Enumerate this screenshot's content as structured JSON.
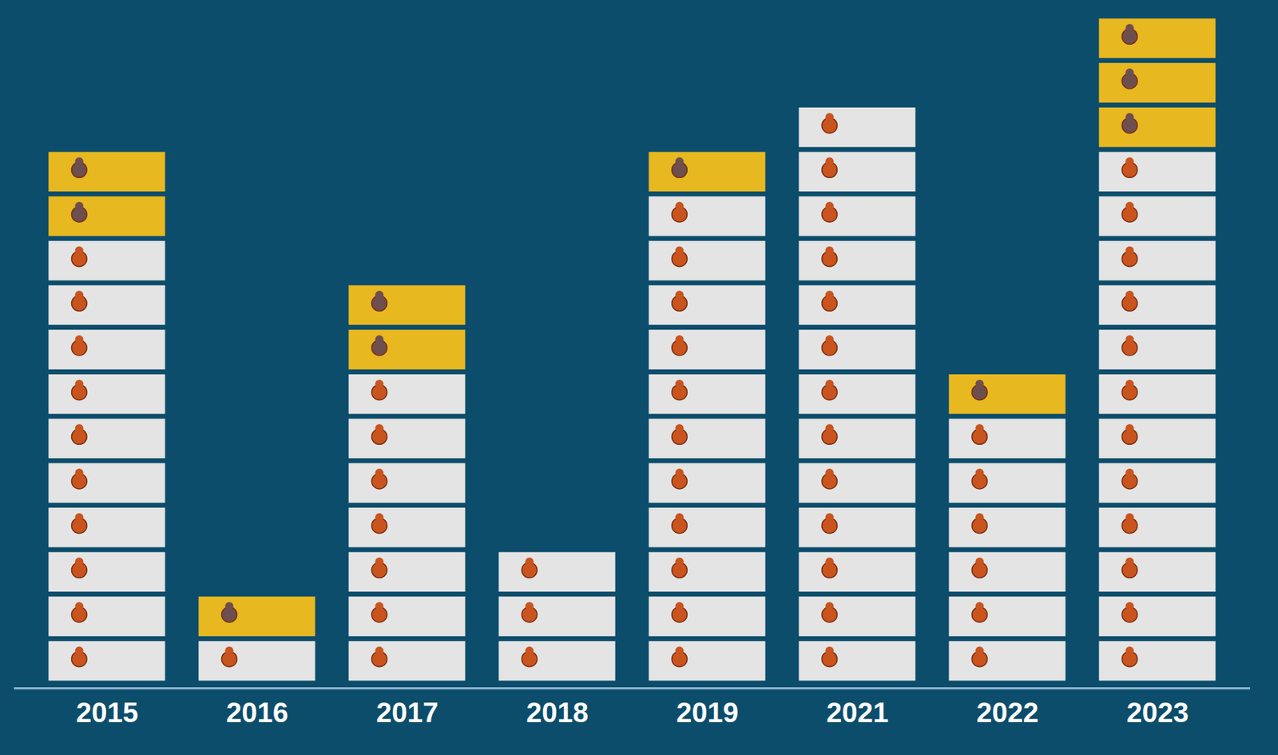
{
  "chart_data": {
    "type": "bar",
    "stacked": true,
    "categories": [
      "2015",
      "2016",
      "2017",
      "2018",
      "2019",
      "2021",
      "2022",
      "2023"
    ],
    "series": [
      {
        "color": "#e4e4e4",
        "values": [
          10,
          1,
          7,
          3,
          11,
          13,
          6,
          12
        ]
      },
      {
        "color": "#e8b820",
        "values": [
          2,
          1,
          2,
          0,
          1,
          0,
          1,
          3
        ]
      }
    ],
    "ylim": [
      0,
      15
    ],
    "tick_labels": "x",
    "grid": false
  }
}
